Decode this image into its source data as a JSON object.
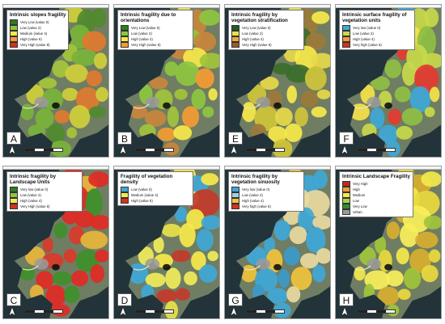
{
  "panels": [
    {
      "letter": "A",
      "title": "Intrinsic slopes fragility",
      "palette": [
        "#4f8a2e",
        "#78b33a",
        "#a4c63b",
        "#cfcf3a",
        "#e07a2f"
      ],
      "legend": [
        {
          "label": "Very Low (value 0)",
          "color": "#2f7d1e"
        },
        {
          "label": "Low (value 2)",
          "color": "#8ec63f"
        },
        {
          "label": "Medium (value 4)",
          "color": "#f6e94a"
        },
        {
          "label": "High (value 6)",
          "color": "#f39c33"
        },
        {
          "label": "Very High (value 8)",
          "color": "#d7301f"
        }
      ]
    },
    {
      "letter": "B",
      "title": "Intrinsic fragility due to orientations",
      "palette": [
        "#8ec63f",
        "#f6e94a",
        "#f39c33",
        "#c9853d",
        "#a2c33b"
      ],
      "legend": [
        {
          "label": "Very Low (value 0)",
          "color": "#2f7d1e"
        },
        {
          "label": "Low (value 2)",
          "color": "#8ec63f"
        },
        {
          "label": "High (value 4)",
          "color": "#f6e94a"
        },
        {
          "label": "Very High (value 6)",
          "color": "#f39c33"
        }
      ]
    },
    {
      "letter": "E",
      "title": "Intrinsic fragility by vegetation stratification",
      "palette": [
        "#f6e94a",
        "#cfc53a",
        "#9c7a3a",
        "#3b6e2a",
        "#e7d84a"
      ],
      "legend": [
        {
          "label": "Very Low (value 0)",
          "color": "#1f5f22"
        },
        {
          "label": "Low (value 2)",
          "color": "#e8e24a"
        },
        {
          "label": "High (value 4)",
          "color": "#f0a83a"
        },
        {
          "label": "Very High (value 6)",
          "color": "#9c5a2a"
        }
      ]
    },
    {
      "letter": "F",
      "title": "Intrinsic surface fragility of vegetation units",
      "palette": [
        "#c7d94a",
        "#8fbf43",
        "#f4e24a",
        "#3fa7d6",
        "#e53a2f"
      ],
      "legend": [
        {
          "label": "Very low (value 0)",
          "color": "#3fa7d6"
        },
        {
          "label": "Low (value 2)",
          "color": "#c7d94a"
        },
        {
          "label": "High (value 4)",
          "color": "#f39c33"
        },
        {
          "label": "Very high (value 6)",
          "color": "#d7301f"
        }
      ]
    },
    {
      "letter": "C",
      "title": "Intrinsic fragility by Landscape Units",
      "palette": [
        "#e02a24",
        "#e02a24",
        "#d93a2a",
        "#e8b53a",
        "#3f8f2a"
      ],
      "legend": [
        {
          "label": "Very low (value 0)",
          "color": "#2f7d1e"
        },
        {
          "label": "Low (value 2)",
          "color": "#8ec63f"
        },
        {
          "label": "High (value 4)",
          "color": "#f6e94a"
        },
        {
          "label": "Very High (value 6)",
          "color": "#d7301f"
        }
      ]
    },
    {
      "letter": "D",
      "title": "Fragility of vegetation density",
      "palette": [
        "#f6e94a",
        "#3fa7d6",
        "#e8e24a",
        "#c23a2a",
        "#f0eb5a"
      ],
      "legend": [
        {
          "label": "Low (value 0)",
          "color": "#3fa7d6"
        },
        {
          "label": "Medium (value 4)",
          "color": "#f6e94a"
        },
        {
          "label": "High (value 6)",
          "color": "#d7301f"
        }
      ]
    },
    {
      "letter": "G",
      "title": "Intrinsic fragility by vegetation sinuosity",
      "palette": [
        "#3fa7d6",
        "#3fa7d6",
        "#e8d9a0",
        "#f0c33a",
        "#3b9ac9"
      ],
      "legend": [
        {
          "label": "Very low (value 0)",
          "color": "#3fa7d6"
        },
        {
          "label": "Low (value 2)",
          "color": "#9fd0e8"
        },
        {
          "label": "High (value 4)",
          "color": "#f0c33a"
        },
        {
          "label": "Very high (value 6)",
          "color": "#d7301f"
        }
      ]
    },
    {
      "letter": "H",
      "title": "Intrinsic Landscape Fragility",
      "palette": [
        "#f2e84a",
        "#e9d93d",
        "#9fc43a",
        "#d7af2f",
        "#f8ef5a"
      ],
      "legend": [
        {
          "label": "Very High",
          "color": "#c0281e"
        },
        {
          "label": "High",
          "color": "#f39c33"
        },
        {
          "label": "Medium",
          "color": "#f6e94a"
        },
        {
          "label": "Low",
          "color": "#a6d44a"
        },
        {
          "label": "Very Low",
          "color": "#2f8f2a"
        },
        {
          "label": "Urban",
          "color": "#9a9a9a"
        }
      ]
    }
  ]
}
